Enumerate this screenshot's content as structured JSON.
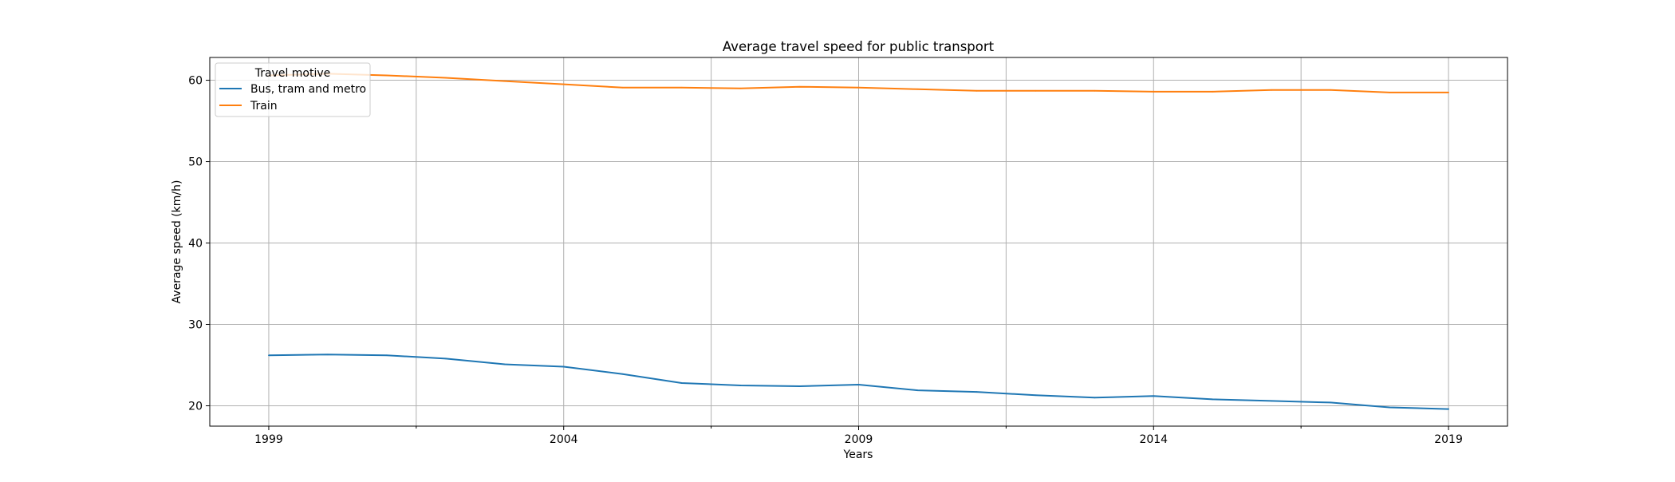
{
  "chart_data": {
    "type": "line",
    "title": "Average travel speed for public transport",
    "xlabel": "Years",
    "ylabel": "Average speed (km/h)",
    "x": [
      1999,
      2000,
      2001,
      2002,
      2003,
      2004,
      2005,
      2006,
      2007,
      2008,
      2009,
      2010,
      2011,
      2012,
      2013,
      2014,
      2015,
      2016,
      2017,
      2018,
      2019
    ],
    "xlim": [
      1998,
      2020
    ],
    "ylim": [
      17.5,
      62.8
    ],
    "xticks": [
      1999,
      2004,
      2009,
      2014,
      2019
    ],
    "xtick_labels": [
      "1999",
      "2004",
      "2009",
      "2014",
      "2019"
    ],
    "minor_xticks": [
      2001.5,
      2006.5,
      2011.5,
      2016.5
    ],
    "yticks": [
      20,
      30,
      40,
      50,
      60
    ],
    "ytick_labels": [
      "20",
      "30",
      "40",
      "50",
      "60"
    ],
    "grid": true,
    "legend": {
      "title": "Travel motive",
      "placement": "top-left"
    },
    "series": [
      {
        "name": "Bus, tram and metro",
        "color": "#1f77b4",
        "values": [
          26.2,
          26.3,
          26.2,
          25.8,
          25.1,
          24.8,
          23.9,
          22.8,
          22.5,
          22.4,
          22.6,
          21.9,
          21.7,
          21.3,
          21.0,
          21.2,
          20.8,
          20.6,
          20.4,
          19.8,
          19.6
        ]
      },
      {
        "name": "Train",
        "color": "#ff7f0e",
        "values": [
          60.6,
          60.8,
          60.6,
          60.3,
          59.9,
          59.5,
          59.1,
          59.1,
          59.0,
          59.2,
          59.1,
          58.9,
          58.7,
          58.7,
          58.7,
          58.6,
          58.6,
          58.8,
          58.8,
          58.5,
          58.5
        ]
      }
    ]
  }
}
